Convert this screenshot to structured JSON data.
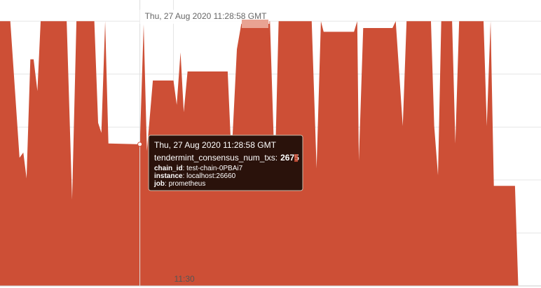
{
  "chart_data": {
    "type": "area",
    "color": "#cd4f36",
    "x": [
      1480,
      1499,
      1516,
      1523,
      1529,
      1536,
      1542,
      1549,
      1555,
      1603,
      1613,
      1621,
      1654,
      1661,
      1667,
      1674,
      1680,
      1738,
      1745,
      1751,
      1762,
      1800,
      1806,
      1813,
      1819,
      1826,
      1900,
      1907,
      1917,
      1926,
      1978,
      1987,
      1994,
      2055,
      2064,
      2072,
      2077,
      2133,
      2139,
      2142,
      2150,
      2204,
      2210,
      2223,
      2230,
      2275,
      2281,
      2288,
      2294,
      2314,
      2320,
      2327,
      2372,
      2378,
      2385,
      2391,
      2430,
      2436
    ],
    "values": [
      5000,
      5000,
      2420,
      2520,
      2030,
      4280,
      4280,
      3680,
      5000,
      5000,
      1630,
      5000,
      5000,
      3080,
      2890,
      5000,
      2690,
      2675,
      4940,
      2550,
      3880,
      3880,
      3420,
      4410,
      3280,
      4050,
      4050,
      2420,
      4470,
      5000,
      5000,
      2090,
      5000,
      5000,
      2220,
      5000,
      4800,
      4800,
      5000,
      2360,
      4870,
      4870,
      5000,
      3020,
      5000,
      5000,
      3020,
      2090,
      5000,
      5000,
      2690,
      5000,
      5000,
      3020,
      5000,
      1890,
      1890,
      0
    ],
    "xlim": [
      1480,
      2478
    ],
    "xticks": [
      {
        "value": 1800,
        "label": "11:30"
      }
    ],
    "ylim": [
      0,
      5400
    ],
    "yticks": [
      1000,
      2000,
      3000,
      4000,
      5000
    ],
    "grid": true,
    "hover": {
      "index": 17,
      "time": "Thu, 27 Aug 2020 11:28:58 GMT",
      "metric": "tendermint_consensus_num_txs:",
      "value": 2675,
      "labels": [
        {
          "key": "chain_id",
          "value": "test-chain-0PBAi7"
        },
        {
          "key": "instance",
          "value": "localhost:26660"
        },
        {
          "key": "job",
          "value": "prometheus"
        }
      ]
    }
  }
}
